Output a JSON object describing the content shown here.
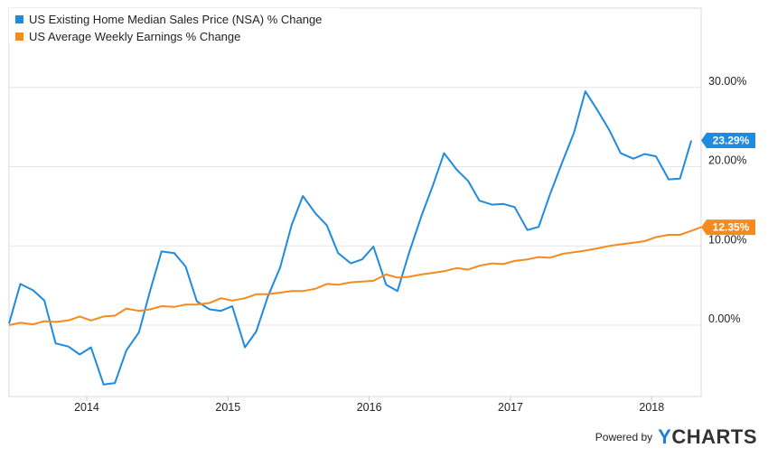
{
  "chart_data": {
    "type": "line",
    "xlabel": "",
    "ylabel": "",
    "x_ticks": [
      "2014",
      "2015",
      "2016",
      "2017",
      "2018"
    ],
    "x_range": [
      2013.45,
      2018.35
    ],
    "y_ticks": [
      "0.00%",
      "10.00%",
      "20.00%",
      "30.00%"
    ],
    "y_tick_values": [
      0,
      10,
      20,
      30
    ],
    "ylim": [
      -9.0,
      40.0
    ],
    "grid": "horizontal",
    "legend_position": "top-left",
    "series": [
      {
        "name": "US Existing Home Median Sales Price (NSA) % Change",
        "color": "#1f8be0",
        "end_label": "23.29%",
        "x": [
          2013.45,
          2013.53,
          2013.62,
          2013.7,
          2013.78,
          2013.87,
          2013.95,
          2014.03,
          2014.12,
          2014.2,
          2014.28,
          2014.37,
          2014.45,
          2014.53,
          2014.62,
          2014.7,
          2014.78,
          2014.87,
          2014.95,
          2015.03,
          2015.12,
          2015.2,
          2015.28,
          2015.37,
          2015.45,
          2015.53,
          2015.62,
          2015.7,
          2015.78,
          2015.87,
          2015.95,
          2016.03,
          2016.12,
          2016.2,
          2016.28,
          2016.37,
          2016.45,
          2016.53,
          2016.62,
          2016.7,
          2016.78,
          2016.87,
          2016.95,
          2017.03,
          2017.12,
          2017.2,
          2017.28,
          2017.37,
          2017.45,
          2017.53,
          2017.62,
          2017.7,
          2017.78,
          2017.87,
          2017.95,
          2018.03,
          2018.12,
          2018.2,
          2018.28
        ],
        "values": [
          0.2,
          5.2,
          4.4,
          3.1,
          -2.3,
          -2.7,
          -3.7,
          -2.8,
          -7.5,
          -7.3,
          -3.2,
          -0.9,
          4.4,
          9.3,
          9.1,
          7.4,
          3.0,
          2.0,
          1.8,
          2.4,
          -2.8,
          -0.8,
          3.5,
          7.3,
          12.6,
          16.3,
          14.1,
          12.6,
          9.1,
          7.8,
          8.3,
          9.9,
          5.1,
          4.3,
          9.0,
          13.8,
          17.6,
          21.7,
          19.6,
          18.2,
          15.7,
          15.2,
          15.3,
          14.9,
          12.0,
          12.4,
          16.5,
          20.7,
          24.3,
          29.5,
          27.0,
          24.6,
          21.7,
          21.0,
          21.6,
          21.3,
          18.4,
          18.5,
          23.3
        ]
      },
      {
        "name": "US Average Weekly Earnings % Change",
        "color": "#f58a1f",
        "end_label": "12.35%",
        "x": [
          2013.45,
          2013.53,
          2013.62,
          2013.7,
          2013.78,
          2013.87,
          2013.95,
          2014.03,
          2014.12,
          2014.2,
          2014.28,
          2014.37,
          2014.45,
          2014.53,
          2014.62,
          2014.7,
          2014.78,
          2014.87,
          2014.95,
          2015.03,
          2015.12,
          2015.2,
          2015.28,
          2015.37,
          2015.45,
          2015.53,
          2015.62,
          2015.7,
          2015.78,
          2015.87,
          2015.95,
          2016.03,
          2016.12,
          2016.2,
          2016.28,
          2016.37,
          2016.45,
          2016.53,
          2016.62,
          2016.7,
          2016.78,
          2016.87,
          2016.95,
          2017.03,
          2017.12,
          2017.2,
          2017.28,
          2017.37,
          2017.45,
          2017.53,
          2017.62,
          2017.7,
          2017.78,
          2017.87,
          2017.95,
          2018.03,
          2018.12,
          2018.2,
          2018.28,
          2018.35
        ],
        "values": [
          0.0,
          0.3,
          0.1,
          0.5,
          0.4,
          0.6,
          1.1,
          0.6,
          1.1,
          1.2,
          2.1,
          1.8,
          2.0,
          2.4,
          2.3,
          2.6,
          2.6,
          2.8,
          3.4,
          3.1,
          3.4,
          3.9,
          3.9,
          4.1,
          4.3,
          4.3,
          4.6,
          5.2,
          5.1,
          5.4,
          5.5,
          5.6,
          6.4,
          6.0,
          6.1,
          6.4,
          6.6,
          6.8,
          7.2,
          7.0,
          7.5,
          7.8,
          7.7,
          8.1,
          8.3,
          8.6,
          8.5,
          9.0,
          9.2,
          9.4,
          9.7,
          10.0,
          10.2,
          10.4,
          10.6,
          11.1,
          11.4,
          11.4,
          11.9,
          12.35
        ]
      }
    ]
  },
  "footer": {
    "powered_by": "Powered by",
    "brand_y": "Y",
    "brand_rest": "CHARTS"
  }
}
